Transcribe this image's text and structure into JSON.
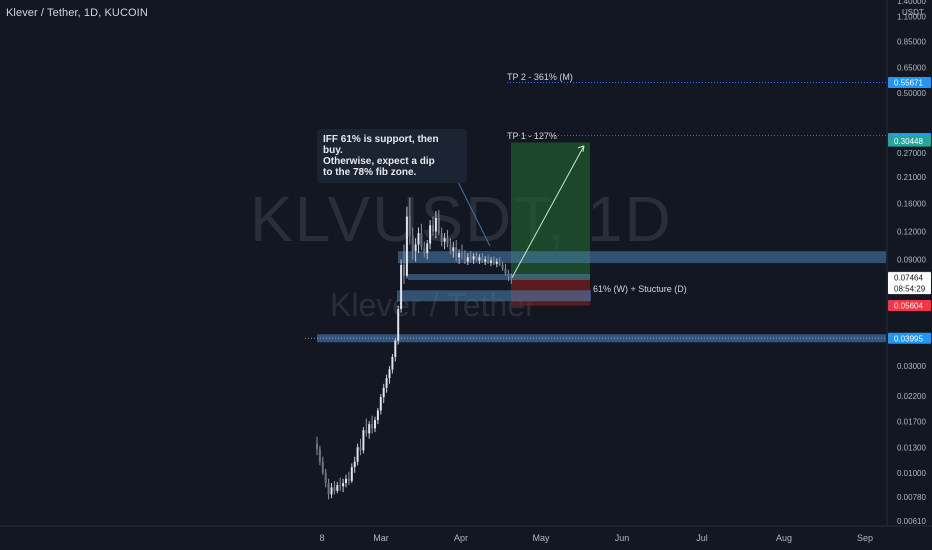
{
  "header": {
    "title": "Klever / Tether, 1D, KUCOIN"
  },
  "watermark": {
    "symbol": "KLVUSDT, 1D",
    "name": "Klever / Tether"
  },
  "axis": {
    "unit": "USDT",
    "top_label": "1.40000"
  },
  "annotations": {
    "note_lines": [
      "IFF 61% is support, then buy.",
      "Otherwise, expect a dip",
      "to the 78% fib zone."
    ],
    "tp2": "TP 2 - 361% (M)",
    "tp1": "TP 1 - 127%",
    "fib": "61% (W) + Stucture (D)"
  },
  "colors": {
    "background": "#131722",
    "up": "#9ba3b8",
    "zone": "#4a7fb5",
    "long_target": "#1f5c2e",
    "long_stop": "#7a1f1f",
    "tp_line": "#2962ff"
  },
  "chart_data": {
    "type": "candlestick",
    "title": "Klever / Tether, 1D, KUCOIN",
    "y_scale": "log",
    "ylim": [
      0.0056,
      1.4
    ],
    "y_ticks": [
      1.1,
      0.85,
      0.65,
      0.5,
      0.27,
      0.21,
      0.16,
      0.12,
      0.09,
      0.03,
      0.022,
      0.017,
      0.013,
      0.01,
      0.0078,
      0.0061
    ],
    "x_ticks": [
      "8",
      "Mar",
      "Apr",
      "May",
      "Jun",
      "Jul",
      "Aug",
      "Sep"
    ],
    "price_labels": [
      {
        "value": "0.55671",
        "price": 0.55671,
        "color": "#2196f3"
      },
      {
        "value": "0.31294",
        "price": 0.31294,
        "color": "#2196f3"
      },
      {
        "value": "0.30448",
        "price": 0.30448,
        "color": "#26a69a"
      },
      {
        "value": "0.07512",
        "price": 0.07512,
        "color": "#50535e"
      },
      {
        "value": "0.07464",
        "price": 0.07464,
        "color": "#ffffff",
        "sub": "08:54:29"
      },
      {
        "value": "0.05604",
        "price": 0.05604,
        "color": "#f23645"
      },
      {
        "value": "0.03995",
        "price": 0.03995,
        "color": "#2196f3"
      }
    ],
    "levels": {
      "tp2": 0.55671,
      "tp1": 0.31294,
      "zone_high": 0.0885,
      "zone_resistance": 0.0751,
      "fib_zone": 0.0635,
      "support": 0.03995
    },
    "candles": [
      [
        0.0135,
        0.0145,
        0.012,
        0.0128
      ],
      [
        0.0128,
        0.0132,
        0.0108,
        0.0112
      ],
      [
        0.0112,
        0.0118,
        0.0098,
        0.01
      ],
      [
        0.01,
        0.0104,
        0.0086,
        0.009
      ],
      [
        0.009,
        0.0094,
        0.0076,
        0.008
      ],
      [
        0.008,
        0.009,
        0.0077,
        0.0086
      ],
      [
        0.0086,
        0.0092,
        0.008,
        0.0083
      ],
      [
        0.0083,
        0.0091,
        0.0081,
        0.0088
      ],
      [
        0.0088,
        0.0095,
        0.0083,
        0.0087
      ],
      [
        0.0087,
        0.0094,
        0.0082,
        0.009
      ],
      [
        0.009,
        0.0098,
        0.0086,
        0.0094
      ],
      [
        0.0094,
        0.0101,
        0.0088,
        0.0092
      ],
      [
        0.0092,
        0.011,
        0.009,
        0.0106
      ],
      [
        0.0106,
        0.0118,
        0.01,
        0.0112
      ],
      [
        0.0112,
        0.0135,
        0.0108,
        0.013
      ],
      [
        0.013,
        0.0142,
        0.012,
        0.0126
      ],
      [
        0.0126,
        0.016,
        0.0122,
        0.0155
      ],
      [
        0.0155,
        0.0175,
        0.0145,
        0.015
      ],
      [
        0.015,
        0.017,
        0.0142,
        0.0165
      ],
      [
        0.0165,
        0.018,
        0.015,
        0.0158
      ],
      [
        0.0158,
        0.0178,
        0.0152,
        0.0172
      ],
      [
        0.0172,
        0.0195,
        0.0165,
        0.019
      ],
      [
        0.019,
        0.0225,
        0.0182,
        0.0218
      ],
      [
        0.0218,
        0.025,
        0.0205,
        0.024
      ],
      [
        0.024,
        0.0275,
        0.0228,
        0.0265
      ],
      [
        0.0265,
        0.03,
        0.025,
        0.029
      ],
      [
        0.029,
        0.034,
        0.0278,
        0.033
      ],
      [
        0.033,
        0.04,
        0.0315,
        0.039
      ],
      [
        0.039,
        0.056,
        0.0375,
        0.054
      ],
      [
        0.054,
        0.09,
        0.052,
        0.085
      ],
      [
        0.085,
        0.105,
        0.07,
        0.076
      ],
      [
        0.076,
        0.155,
        0.074,
        0.14
      ],
      [
        0.14,
        0.17,
        0.105,
        0.115
      ],
      [
        0.115,
        0.125,
        0.09,
        0.098
      ],
      [
        0.098,
        0.112,
        0.088,
        0.105
      ],
      [
        0.105,
        0.125,
        0.096,
        0.118
      ],
      [
        0.118,
        0.13,
        0.099,
        0.102
      ],
      [
        0.102,
        0.108,
        0.092,
        0.096
      ],
      [
        0.096,
        0.11,
        0.09,
        0.106
      ],
      [
        0.106,
        0.135,
        0.1,
        0.128
      ],
      [
        0.128,
        0.14,
        0.115,
        0.12
      ],
      [
        0.12,
        0.148,
        0.112,
        0.138
      ],
      [
        0.138,
        0.15,
        0.115,
        0.118
      ],
      [
        0.118,
        0.125,
        0.103,
        0.108
      ],
      [
        0.108,
        0.118,
        0.1,
        0.112
      ],
      [
        0.112,
        0.122,
        0.102,
        0.105
      ],
      [
        0.105,
        0.112,
        0.095,
        0.098
      ],
      [
        0.098,
        0.108,
        0.092,
        0.102
      ],
      [
        0.102,
        0.11,
        0.088,
        0.092
      ],
      [
        0.092,
        0.1,
        0.086,
        0.096
      ],
      [
        0.096,
        0.105,
        0.09,
        0.094
      ],
      [
        0.094,
        0.099,
        0.086,
        0.088
      ],
      [
        0.088,
        0.096,
        0.085,
        0.092
      ],
      [
        0.092,
        0.098,
        0.087,
        0.09
      ],
      [
        0.09,
        0.096,
        0.086,
        0.093
      ],
      [
        0.093,
        0.097,
        0.088,
        0.089
      ],
      [
        0.089,
        0.095,
        0.086,
        0.092
      ],
      [
        0.092,
        0.096,
        0.087,
        0.088
      ],
      [
        0.088,
        0.093,
        0.085,
        0.09
      ],
      [
        0.09,
        0.094,
        0.086,
        0.087
      ],
      [
        0.087,
        0.092,
        0.084,
        0.089
      ],
      [
        0.089,
        0.093,
        0.085,
        0.086
      ],
      [
        0.086,
        0.091,
        0.083,
        0.088
      ],
      [
        0.088,
        0.092,
        0.084,
        0.085
      ],
      [
        0.085,
        0.088,
        0.08,
        0.082
      ],
      [
        0.082,
        0.086,
        0.076,
        0.078
      ],
      [
        0.078,
        0.081,
        0.072,
        0.075
      ],
      [
        0.075,
        0.078,
        0.07,
        0.0746
      ]
    ]
  }
}
